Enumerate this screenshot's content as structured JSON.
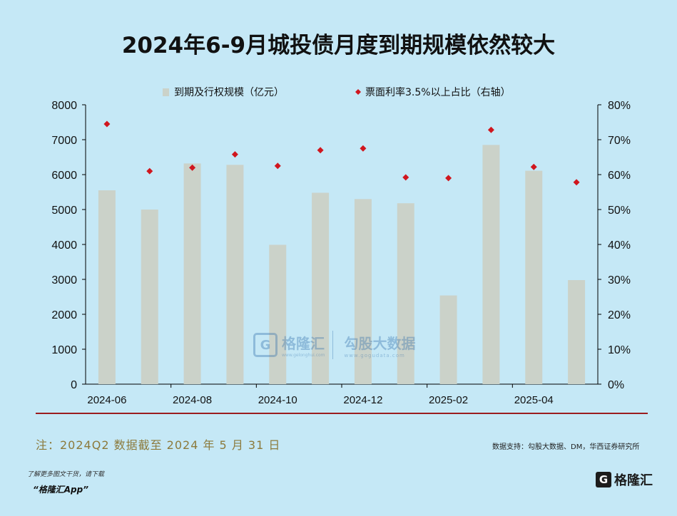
{
  "title": "2024年6-9月城投债月度到期规模依然较大",
  "chart_data": {
    "type": "bar",
    "title": "2024年6-9月城投债月度到期规模依然较大",
    "categories": [
      "2024-06",
      "2024-07",
      "2024-08",
      "2024-09",
      "2024-10",
      "2024-11",
      "2024-12",
      "2025-01",
      "2025-02",
      "2025-03",
      "2025-04",
      "2025-05"
    ],
    "x_tick_labels": [
      "2024-06",
      "2024-08",
      "2024-10",
      "2024-12",
      "2025-02",
      "2025-04"
    ],
    "series": [
      {
        "name": "到期及行权规模（亿元）",
        "kind": "bar",
        "axis": "left",
        "color": "#cbd2c9",
        "values": [
          5550,
          5000,
          6320,
          6280,
          3990,
          5480,
          5300,
          5180,
          2540,
          6850,
          6110,
          2980
        ]
      },
      {
        "name": "票面利率3.5%以上占比（右轴）",
        "kind": "scatter",
        "axis": "right",
        "color": "#d0161e",
        "values": [
          74.5,
          61.0,
          62.0,
          65.8,
          62.5,
          67.0,
          67.5,
          59.2,
          59.0,
          72.8,
          62.2,
          57.8
        ]
      }
    ],
    "y_left": {
      "min": 0,
      "max": 8000,
      "ticks": [
        0,
        1000,
        2000,
        3000,
        4000,
        5000,
        6000,
        7000,
        8000
      ]
    },
    "y_right": {
      "min": 0,
      "max": 80,
      "ticks": [
        "0%",
        "10%",
        "20%",
        "30%",
        "40%",
        "50%",
        "60%",
        "70%",
        "80%"
      ]
    },
    "legend_position": "top-center"
  },
  "note": "注：2024Q2 数据截至 2024 年 5 月 31 日",
  "source": "数据支持：勾股大数据、DM，华西证券研究所",
  "watermark": {
    "brand": "格隆汇",
    "brand_icon": "G",
    "site": "www.gelonghui.com",
    "partner": "勾股大数据",
    "partner_site": "www.gogudata.com"
  },
  "footer": {
    "hint": "了解更多图文干货，请下载",
    "app": "“格隆汇App”",
    "logo_icon": "G",
    "logo_text": "格隆汇"
  }
}
